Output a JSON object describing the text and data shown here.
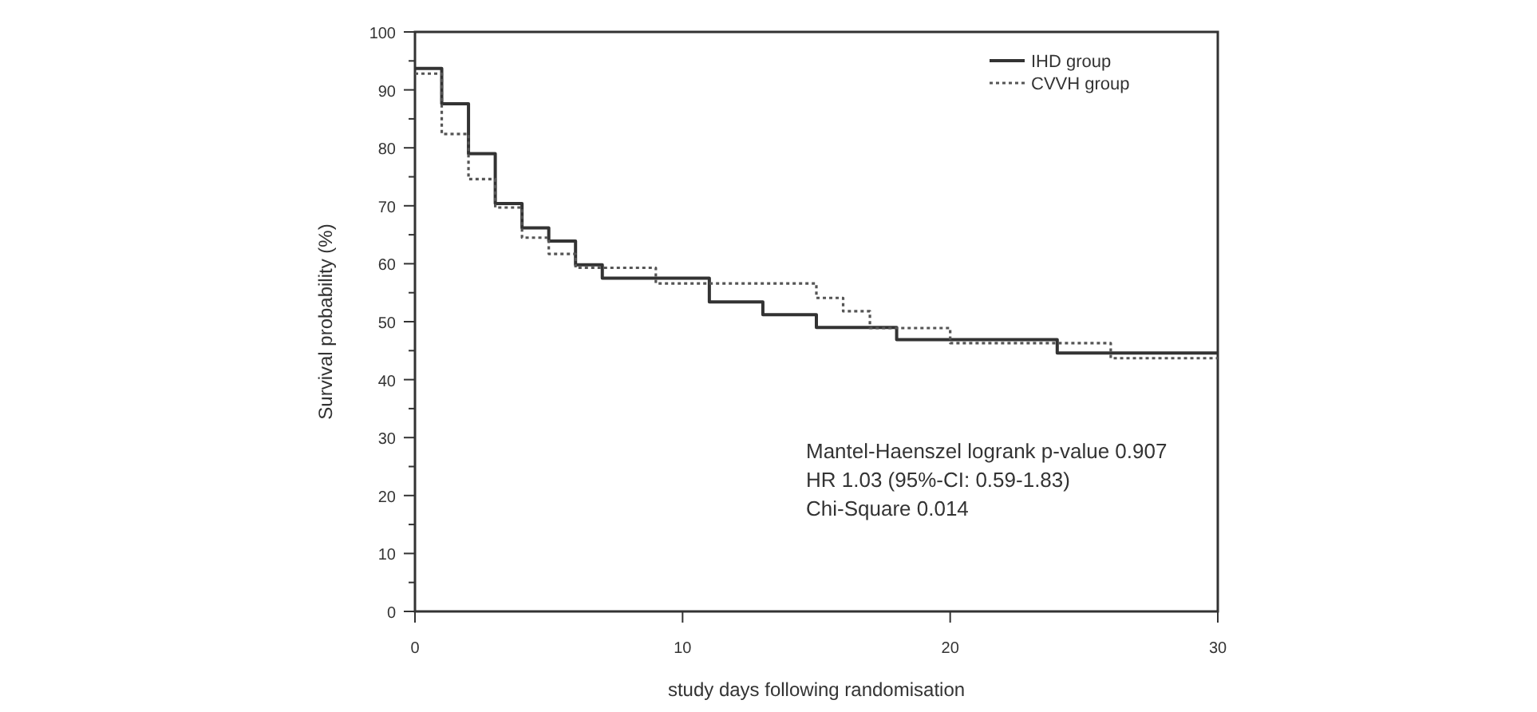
{
  "chart_data": {
    "type": "step",
    "xlabel": "study days following randomisation",
    "ylabel": "Survival probability (%)",
    "xlim": [
      0,
      30
    ],
    "xticks": [
      0,
      10,
      20,
      30
    ],
    "ylim": [
      0,
      100
    ],
    "yticks": [
      0,
      {
        "value": 5,
        "label": null
      },
      10,
      {
        "value": 15,
        "label": null
      },
      20,
      {
        "value": 25,
        "label": null
      },
      30,
      {
        "value": 35,
        "label": null
      },
      40,
      {
        "value": 45,
        "label": null
      },
      50,
      {
        "value": 55,
        "label": null
      },
      60,
      {
        "value": 65,
        "label": null
      },
      70,
      {
        "value": 75,
        "label": null
      },
      80,
      {
        "value": 85,
        "label": null
      },
      90,
      {
        "value": 95,
        "label": null
      },
      100
    ],
    "grid": false,
    "legend": "top right",
    "series": [
      {
        "name": "IHD group",
        "color": "#333333",
        "line_style": "solid",
        "x": [
          0,
          1,
          2,
          3,
          4,
          5,
          6,
          7,
          11,
          13,
          15,
          18,
          24,
          30
        ],
        "values": [
          93.7,
          87.6,
          79,
          70.4,
          66.2,
          63.9,
          59.8,
          57.5,
          53.4,
          51.2,
          49,
          46.9,
          44.6,
          44.6
        ]
      },
      {
        "name": "CVVH group",
        "color": "#555555",
        "line_style": "dotted",
        "x": [
          0,
          1,
          2,
          3,
          4,
          5,
          6,
          9,
          15,
          16,
          17,
          20,
          26,
          30
        ],
        "values": [
          92.8,
          82.4,
          74.6,
          69.7,
          64.5,
          61.7,
          59.3,
          56.6,
          54.1,
          51.8,
          48.9,
          46.3,
          43.7,
          43.7
        ]
      }
    ],
    "annotations": [
      "Mantel-Haenszel logrank p-value 0.907",
      "HR 1.03 (95%-CI: 0.59-1.83)",
      "Chi-Square 0.014"
    ]
  }
}
